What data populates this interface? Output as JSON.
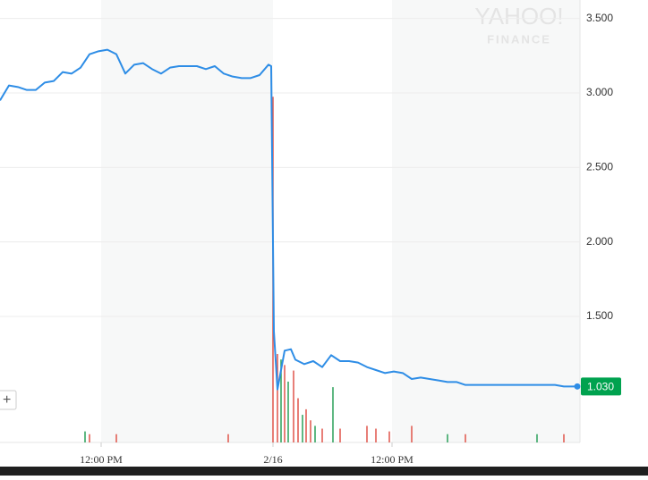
{
  "chart_data": {
    "type": "line",
    "watermark": [
      "YAHOO!",
      "FINANCE"
    ],
    "series": [
      {
        "color": "#2e8de6",
        "x": [
          0,
          10,
          20,
          30,
          40,
          50,
          60,
          70,
          80,
          90,
          100,
          110,
          120,
          130,
          140,
          150,
          160,
          170,
          180,
          190,
          200,
          210,
          220,
          230,
          240,
          250,
          260,
          270,
          280,
          290,
          300,
          303,
          306,
          310,
          318,
          325,
          330,
          340,
          350,
          360,
          370,
          380,
          390,
          400,
          410,
          420,
          430,
          440,
          450,
          460,
          470,
          480,
          490,
          500,
          510,
          520,
          530,
          540,
          550,
          560,
          570,
          580,
          590,
          600,
          610,
          620,
          630,
          645
        ],
        "values": [
          2.95,
          3.05,
          3.04,
          3.02,
          3.02,
          3.07,
          3.08,
          3.14,
          3.13,
          3.17,
          3.26,
          3.28,
          3.29,
          3.26,
          3.13,
          3.19,
          3.2,
          3.16,
          3.13,
          3.17,
          3.18,
          3.18,
          3.18,
          3.16,
          3.18,
          3.13,
          3.11,
          3.1,
          3.1,
          3.12,
          3.19,
          3.18,
          1.4,
          1.01,
          1.27,
          1.28,
          1.21,
          1.18,
          1.2,
          1.16,
          1.24,
          1.2,
          1.2,
          1.19,
          1.16,
          1.14,
          1.12,
          1.13,
          1.12,
          1.08,
          1.09,
          1.08,
          1.07,
          1.06,
          1.06,
          1.04,
          1.04,
          1.04,
          1.04,
          1.04,
          1.04,
          1.04,
          1.04,
          1.04,
          1.04,
          1.04,
          1.03,
          1.03
        ]
      }
    ],
    "volume": {
      "x": [
        95,
        100,
        130,
        255,
        305,
        310,
        314,
        318,
        322,
        328,
        333,
        338,
        342,
        347,
        352,
        360,
        372,
        380,
        410,
        420,
        435,
        460,
        500,
        520,
        600,
        630
      ],
      "values": [
        4,
        3,
        3,
        3,
        125,
        32,
        30,
        28,
        22,
        26,
        16,
        10,
        12,
        8,
        6,
        5,
        20,
        5,
        6,
        5,
        4,
        6,
        3,
        3,
        3,
        3
      ],
      "colors": [
        "#2ca05a",
        "#e0554b",
        "#e0554b",
        "#e0554b",
        "#e0554b",
        "#e0554b",
        "#2ca05a",
        "#e0554b",
        "#2ca05a",
        "#e0554b",
        "#e0554b",
        "#2ca05a",
        "#e0554b",
        "#e0554b",
        "#2ca05a",
        "#e0554b",
        "#2ca05a",
        "#e0554b",
        "#e0554b",
        "#e0554b",
        "#e0554b",
        "#e0554b",
        "#2ca05a",
        "#e0554b",
        "#2ca05a",
        "#e0554b"
      ],
      "ylim": [
        0,
        160
      ]
    },
    "xlim": [
      0,
      648
    ],
    "xticks": [
      {
        "value": 113,
        "label": "12:00 PM"
      },
      {
        "value": 305,
        "label": "2/16"
      },
      {
        "value": 438,
        "label": "12:00 PM"
      }
    ],
    "ylim": [
      0.654,
      3.624
    ],
    "yticks": [
      {
        "value": 1.5,
        "label": "1.500"
      },
      {
        "value": 2,
        "label": "2.000"
      },
      {
        "value": 2.5,
        "label": "2.500"
      },
      {
        "value": 3,
        "label": "3.000"
      },
      {
        "value": 3.5,
        "label": "3.500"
      }
    ],
    "last_value": {
      "value": 1.03,
      "label": "1.030"
    },
    "grid": true
  }
}
